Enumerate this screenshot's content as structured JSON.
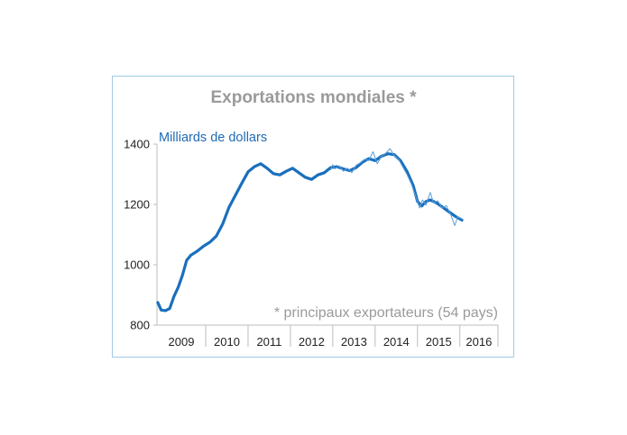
{
  "chart_data": {
    "type": "line",
    "title": "Exportations mondiales *",
    "ylabel": "Milliards de dollars",
    "footnote": "* principaux exportateurs (54 pays)",
    "ylim": [
      800,
      1400
    ],
    "yticks": [
      800,
      1000,
      1200,
      1400
    ],
    "xlim": [
      2008.85,
      2016.9
    ],
    "year_labels": [
      "2009",
      "2010",
      "2011",
      "2012",
      "2013",
      "2014",
      "2015",
      "2016"
    ],
    "colors": {
      "smooth": "#1a6fbd",
      "raw": "#5a9fd8",
      "axis": "#bdbdbd",
      "frame": "#9fcbe6"
    },
    "series": [
      {
        "style": "thick",
        "points": [
          [
            2008.87,
            875
          ],
          [
            2008.95,
            850
          ],
          [
            2009.05,
            848
          ],
          [
            2009.15,
            855
          ],
          [
            2009.25,
            895
          ],
          [
            2009.35,
            925
          ],
          [
            2009.45,
            965
          ],
          [
            2009.55,
            1015
          ],
          [
            2009.65,
            1032
          ],
          [
            2009.8,
            1045
          ],
          [
            2009.95,
            1062
          ],
          [
            2010.1,
            1075
          ],
          [
            2010.25,
            1095
          ],
          [
            2010.4,
            1135
          ],
          [
            2010.55,
            1190
          ],
          [
            2010.7,
            1230
          ],
          [
            2010.85,
            1270
          ],
          [
            2011.0,
            1308
          ],
          [
            2011.15,
            1325
          ],
          [
            2011.3,
            1335
          ],
          [
            2011.45,
            1320
          ],
          [
            2011.6,
            1302
          ],
          [
            2011.75,
            1298
          ],
          [
            2011.9,
            1310
          ],
          [
            2012.05,
            1320
          ],
          [
            2012.2,
            1305
          ],
          [
            2012.35,
            1290
          ],
          [
            2012.5,
            1283
          ],
          [
            2012.65,
            1298
          ],
          [
            2012.8,
            1305
          ],
          [
            2012.95,
            1322
          ],
          [
            2013.1,
            1325
          ],
          [
            2013.25,
            1318
          ],
          [
            2013.4,
            1312
          ],
          [
            2013.55,
            1322
          ],
          [
            2013.7,
            1340
          ],
          [
            2013.85,
            1352
          ],
          [
            2014.0,
            1345
          ],
          [
            2014.15,
            1360
          ],
          [
            2014.3,
            1368
          ],
          [
            2014.45,
            1365
          ],
          [
            2014.6,
            1345
          ],
          [
            2014.75,
            1310
          ],
          [
            2014.9,
            1262
          ],
          [
            2015.0,
            1210
          ],
          [
            2015.1,
            1195
          ],
          [
            2015.2,
            1210
          ],
          [
            2015.3,
            1215
          ],
          [
            2015.45,
            1205
          ],
          [
            2015.6,
            1190
          ],
          [
            2015.75,
            1175
          ],
          [
            2015.9,
            1160
          ],
          [
            2016.05,
            1148
          ]
        ]
      },
      {
        "style": "thin",
        "points": [
          [
            2012.95,
            1315
          ],
          [
            2013.0,
            1332
          ],
          [
            2013.05,
            1318
          ],
          [
            2013.15,
            1328
          ],
          [
            2013.25,
            1310
          ],
          [
            2013.35,
            1320
          ],
          [
            2013.45,
            1305
          ],
          [
            2013.55,
            1330
          ],
          [
            2013.65,
            1338
          ],
          [
            2013.75,
            1350
          ],
          [
            2013.85,
            1345
          ],
          [
            2013.95,
            1375
          ],
          [
            2014.05,
            1335
          ],
          [
            2014.15,
            1360
          ],
          [
            2014.25,
            1370
          ],
          [
            2014.35,
            1385
          ],
          [
            2014.45,
            1362
          ],
          [
            2014.55,
            1350
          ],
          [
            2014.65,
            1325
          ],
          [
            2014.75,
            1300
          ],
          [
            2014.85,
            1270
          ],
          [
            2014.95,
            1230
          ],
          [
            2015.05,
            1188
          ],
          [
            2015.12,
            1215
          ],
          [
            2015.2,
            1198
          ],
          [
            2015.3,
            1240
          ],
          [
            2015.38,
            1205
          ],
          [
            2015.48,
            1212
          ],
          [
            2015.58,
            1188
          ],
          [
            2015.68,
            1196
          ],
          [
            2015.78,
            1168
          ],
          [
            2015.88,
            1130
          ],
          [
            2015.95,
            1160
          ],
          [
            2016.05,
            1152
          ]
        ]
      }
    ]
  }
}
